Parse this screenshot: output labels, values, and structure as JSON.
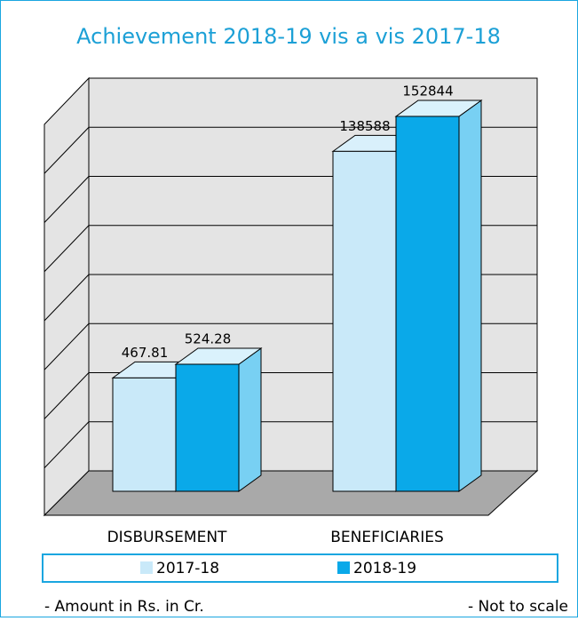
{
  "chart_data": {
    "type": "bar",
    "title": "Achievement 2018-19 vis a vis 2017-18",
    "categories": [
      "DISBURSEMENT",
      "BENEFICIARIES"
    ],
    "series": [
      {
        "name": "2017-18",
        "color": "#c9e9f9",
        "values": [
          467.81,
          138588
        ]
      },
      {
        "name": "2018-19",
        "color": "#0aa9e9",
        "values": [
          524.28,
          152844
        ]
      }
    ],
    "grid": true,
    "notes": [
      "- Amount in Rs. in Cr.",
      "- Not to scale"
    ]
  }
}
